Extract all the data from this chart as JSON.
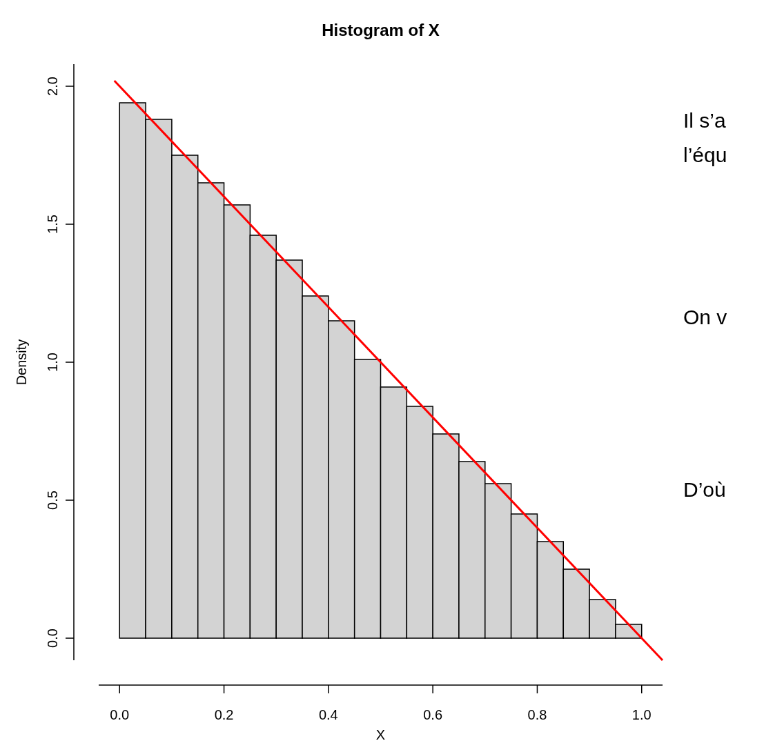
{
  "chart_data": {
    "type": "histogram",
    "title": "Histogram of X",
    "xlabel": "X",
    "ylabel": "Density",
    "xlim": [
      -0.04,
      1.04
    ],
    "ylim": [
      -0.08,
      2.08
    ],
    "xticks": [
      {
        "value": 0,
        "label": "0.0"
      },
      0.2,
      0.4,
      0.6,
      0.8,
      {
        "value": 1,
        "label": "1.0"
      }
    ],
    "yticks": [
      {
        "value": 0,
        "label": "0.0"
      },
      0.5,
      {
        "value": 1,
        "label": "1.0"
      },
      1.5,
      {
        "value": 2,
        "label": "2.0"
      }
    ],
    "series": [
      {
        "color": "#d3d3d3",
        "bins": [
          0,
          0.05,
          0.1,
          0.15,
          0.2,
          0.25,
          0.3,
          0.35,
          0.4,
          0.45,
          0.5,
          0.55,
          0.6,
          0.65,
          0.7,
          0.75,
          0.8,
          0.85,
          0.9,
          0.95,
          1
        ],
        "values": [
          1.94,
          1.88,
          1.75,
          1.65,
          1.57,
          1.46,
          1.37,
          1.24,
          1.15,
          1.01,
          0.91,
          0.84,
          0.74,
          0.64,
          0.56,
          0.45,
          0.35,
          0.25,
          0.14,
          0.05
        ]
      },
      {
        "type": "line",
        "color": "#ff0000",
        "x": [
          -0.01,
          1.04
        ],
        "values": [
          2.02,
          -0.08
        ]
      }
    ],
    "annotations": [
      "Il s’a",
      "l’équ",
      "On v",
      "D’où"
    ]
  }
}
